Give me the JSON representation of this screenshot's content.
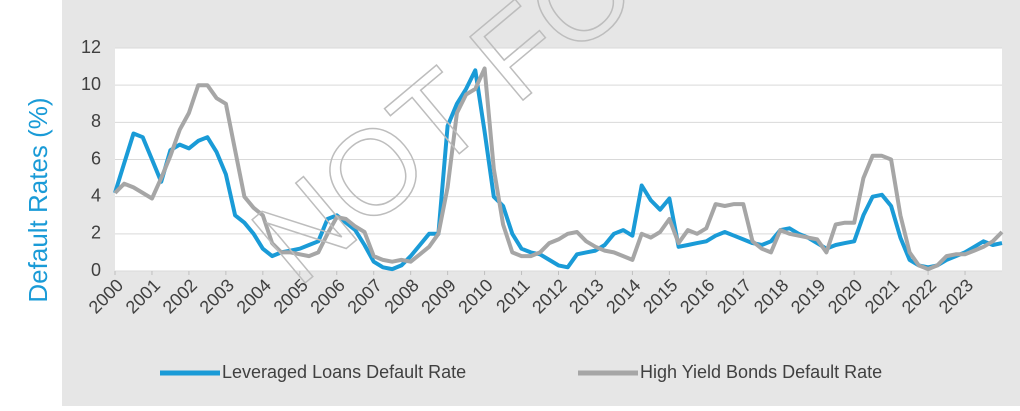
{
  "chart_data": {
    "type": "line",
    "ylabel": "Default Rates (%)",
    "watermark": "NOT FO",
    "x": [
      2000,
      2000.25,
      2000.5,
      2000.75,
      2001,
      2001.25,
      2001.5,
      2001.75,
      2002,
      2002.25,
      2002.5,
      2002.75,
      2003,
      2003.25,
      2003.5,
      2003.75,
      2004,
      2004.25,
      2004.5,
      2004.75,
      2005,
      2005.25,
      2005.5,
      2005.75,
      2006,
      2006.25,
      2006.5,
      2006.75,
      2007,
      2007.25,
      2007.5,
      2007.75,
      2008,
      2008.25,
      2008.5,
      2008.75,
      2009,
      2009.25,
      2009.5,
      2009.75,
      2010,
      2010.25,
      2010.5,
      2010.75,
      2011,
      2011.25,
      2011.5,
      2011.75,
      2012,
      2012.25,
      2012.5,
      2012.75,
      2013,
      2013.25,
      2013.5,
      2013.75,
      2014,
      2014.25,
      2014.5,
      2014.75,
      2015,
      2015.25,
      2015.5,
      2015.75,
      2016,
      2016.25,
      2016.5,
      2016.75,
      2017,
      2017.25,
      2017.5,
      2017.75,
      2018,
      2018.25,
      2018.5,
      2018.75,
      2019,
      2019.25,
      2019.5,
      2019.75,
      2020,
      2020.25,
      2020.5,
      2020.75,
      2021,
      2021.25,
      2021.5,
      2021.75,
      2022,
      2022.25,
      2022.5,
      2022.75,
      2023,
      2023.25,
      2023.5,
      2023.75,
      2024
    ],
    "series": [
      {
        "name": "Leveraged Loans Default Rate",
        "color": "#1a9bd7",
        "values": [
          4.2,
          5.8,
          7.4,
          7.2,
          6.0,
          4.8,
          6.5,
          6.8,
          6.6,
          7.0,
          7.2,
          6.4,
          5.2,
          3.0,
          2.6,
          2.0,
          1.2,
          0.8,
          1.0,
          1.1,
          1.2,
          1.4,
          1.6,
          2.8,
          3.0,
          2.6,
          2.2,
          1.4,
          0.5,
          0.2,
          0.1,
          0.3,
          0.8,
          1.4,
          2.0,
          2.0,
          7.8,
          9.0,
          9.8,
          10.8,
          7.5,
          4.0,
          3.5,
          2.0,
          1.2,
          1.0,
          0.9,
          0.6,
          0.3,
          0.2,
          0.9,
          1.0,
          1.1,
          1.4,
          2.0,
          2.2,
          1.9,
          4.6,
          3.8,
          3.3,
          3.9,
          1.3,
          1.4,
          1.5,
          1.6,
          1.9,
          2.1,
          1.9,
          1.7,
          1.5,
          1.4,
          1.6,
          2.2,
          2.3,
          2.0,
          1.8,
          1.5,
          1.2,
          1.4,
          1.5,
          1.6,
          3.0,
          4.0,
          4.1,
          3.5,
          1.8,
          0.6,
          0.3,
          0.2,
          0.3,
          0.6,
          0.8,
          1.0,
          1.3,
          1.6,
          1.4,
          1.5
        ]
      },
      {
        "name": "High Yield Bonds Default Rate",
        "color": "#a6a6a6",
        "values": [
          4.2,
          4.7,
          4.5,
          4.2,
          3.9,
          5.0,
          6.2,
          7.6,
          8.5,
          10.0,
          10.0,
          9.3,
          9.0,
          6.5,
          4.0,
          3.4,
          3.0,
          1.5,
          1.0,
          1.0,
          0.9,
          0.8,
          1.0,
          2.0,
          2.9,
          2.8,
          2.4,
          2.1,
          0.8,
          0.6,
          0.5,
          0.6,
          0.5,
          0.9,
          1.3,
          2.0,
          4.5,
          8.5,
          9.5,
          9.8,
          10.9,
          5.5,
          2.5,
          1.0,
          0.8,
          0.8,
          1.0,
          1.5,
          1.7,
          2.0,
          2.1,
          1.6,
          1.3,
          1.1,
          1.0,
          0.8,
          0.6,
          2.0,
          1.8,
          2.1,
          2.8,
          1.5,
          2.2,
          2.0,
          2.3,
          3.6,
          3.5,
          3.6,
          3.6,
          1.6,
          1.2,
          1.0,
          2.2,
          2.0,
          1.9,
          1.8,
          1.7,
          1.0,
          2.5,
          2.6,
          2.6,
          5.0,
          6.2,
          6.2,
          6.0,
          3.0,
          1.0,
          0.3,
          0.1,
          0.3,
          0.8,
          0.9,
          0.9,
          1.1,
          1.3,
          1.6,
          2.1
        ]
      }
    ],
    "xlim": [
      2000,
      2024
    ],
    "xticks": [
      2000,
      2001,
      2002,
      2003,
      2004,
      2005,
      2006,
      2007,
      2008,
      2009,
      2010,
      2011,
      2012,
      2013,
      2014,
      2015,
      2016,
      2017,
      2018,
      2019,
      2020,
      2021,
      2022,
      2023
    ],
    "ylim": [
      0,
      12
    ],
    "yticks": [
      0,
      2,
      4,
      6,
      8,
      10,
      12
    ],
    "grid": true,
    "legend": "bottom"
  }
}
